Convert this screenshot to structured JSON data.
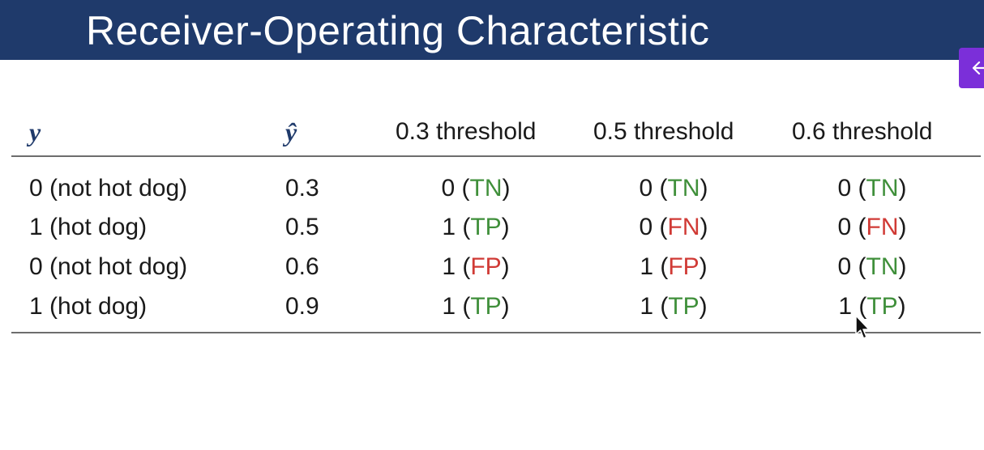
{
  "title": "Receiver-Operating Characteristic",
  "colors": {
    "title_bar": "#1f3a6b",
    "positive_correct": "#3f8f3a",
    "negative_error": "#d03a35",
    "side_tab": "#7b2fd9"
  },
  "table": {
    "headers": {
      "y": "y",
      "y_hat": "ŷ",
      "t03": "0.3 threshold",
      "t05": "0.5 threshold",
      "t06": "0.6 threshold"
    },
    "rows": [
      {
        "y": "0 (not hot dog)",
        "y_hat": "0.3",
        "t03": {
          "pred": "0",
          "code": "TN",
          "color": "green"
        },
        "t05": {
          "pred": "0",
          "code": "TN",
          "color": "green"
        },
        "t06": {
          "pred": "0",
          "code": "TN",
          "color": "green"
        }
      },
      {
        "y": "1 (hot dog)",
        "y_hat": "0.5",
        "t03": {
          "pred": "1",
          "code": "TP",
          "color": "green"
        },
        "t05": {
          "pred": "0",
          "code": "FN",
          "color": "red"
        },
        "t06": {
          "pred": "0",
          "code": "FN",
          "color": "red"
        }
      },
      {
        "y": "0 (not hot dog)",
        "y_hat": "0.6",
        "t03": {
          "pred": "1",
          "code": "FP",
          "color": "red"
        },
        "t05": {
          "pred": "1",
          "code": "FP",
          "color": "red"
        },
        "t06": {
          "pred": "0",
          "code": "TN",
          "color": "green"
        }
      },
      {
        "y": "1 (hot dog)",
        "y_hat": "0.9",
        "t03": {
          "pred": "1",
          "code": "TP",
          "color": "green"
        },
        "t05": {
          "pred": "1",
          "code": "TP",
          "color": "green"
        },
        "t06": {
          "pred": "1",
          "code": "TP",
          "color": "green"
        }
      }
    ]
  },
  "side_tab_icon": "arrow-left-icon",
  "cursor_icon": "mouse-pointer-icon"
}
